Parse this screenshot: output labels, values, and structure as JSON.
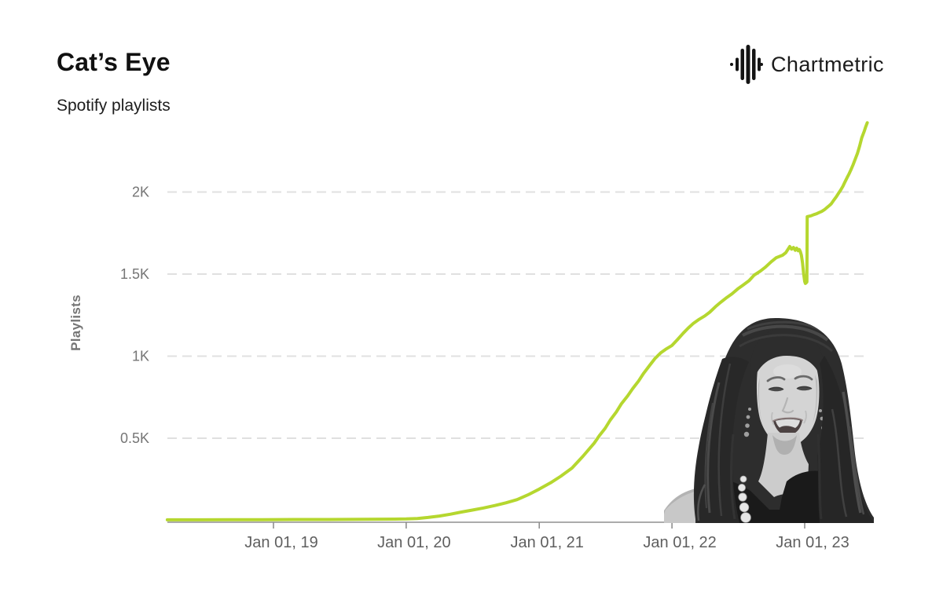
{
  "header": {
    "title": "Cat’s Eye",
    "subtitle": "Spotify playlists"
  },
  "brand": {
    "name": "Chartmetric"
  },
  "chart_data": {
    "type": "line",
    "title": "Cat's Eye",
    "subtitle": "Spotify playlists",
    "ylabel": "Playlists",
    "series_name": "Spotify playlists count",
    "line_color": "#b5d72f",
    "grid_color": "#e0e0e0",
    "axis_color": "#8f8f8f",
    "y_tick_color": "#757575",
    "x_tick_color": "#5f5f5f",
    "grid": "dashed horizontal",
    "legend": "none",
    "ylim": [
      0,
      2500
    ],
    "x_domain": [
      "2018-03-15",
      "2023-06-22"
    ],
    "x_ticks": [
      {
        "label": "Jan 01, 19",
        "date": "2019-01-01"
      },
      {
        "label": "Jan 01, 20",
        "date": "2020-01-01"
      },
      {
        "label": "Jan 01, 21",
        "date": "2021-01-01"
      },
      {
        "label": "Jan 01, 22",
        "date": "2022-01-01"
      },
      {
        "label": "Jan 01, 23",
        "date": "2023-01-01"
      }
    ],
    "y_ticks": [
      {
        "label": "0.5K",
        "value": 500
      },
      {
        "label": "1K",
        "value": 1000
      },
      {
        "label": "1.5K",
        "value": 1500
      },
      {
        "label": "2K",
        "value": 2000
      }
    ],
    "points": [
      {
        "d": "2018-03-15",
        "v": 3
      },
      {
        "d": "2018-06-01",
        "v": 3
      },
      {
        "d": "2018-09-01",
        "v": 4
      },
      {
        "d": "2018-12-01",
        "v": 4
      },
      {
        "d": "2019-03-01",
        "v": 5
      },
      {
        "d": "2019-06-01",
        "v": 5
      },
      {
        "d": "2019-09-01",
        "v": 6
      },
      {
        "d": "2019-12-01",
        "v": 7
      },
      {
        "d": "2020-01-01",
        "v": 8
      },
      {
        "d": "2020-02-01",
        "v": 11
      },
      {
        "d": "2020-03-01",
        "v": 17
      },
      {
        "d": "2020-04-01",
        "v": 26
      },
      {
        "d": "2020-05-01",
        "v": 37
      },
      {
        "d": "2020-06-01",
        "v": 50
      },
      {
        "d": "2020-07-01",
        "v": 62
      },
      {
        "d": "2020-08-01",
        "v": 75
      },
      {
        "d": "2020-09-01",
        "v": 90
      },
      {
        "d": "2020-10-01",
        "v": 106
      },
      {
        "d": "2020-11-01",
        "v": 126
      },
      {
        "d": "2020-12-01",
        "v": 155
      },
      {
        "d": "2021-01-01",
        "v": 190
      },
      {
        "d": "2021-02-01",
        "v": 228
      },
      {
        "d": "2021-03-01",
        "v": 268
      },
      {
        "d": "2021-04-01",
        "v": 318
      },
      {
        "d": "2021-05-01",
        "v": 390
      },
      {
        "d": "2021-06-01",
        "v": 470
      },
      {
        "d": "2021-06-15",
        "v": 515
      },
      {
        "d": "2021-07-01",
        "v": 560
      },
      {
        "d": "2021-07-15",
        "v": 610
      },
      {
        "d": "2021-08-01",
        "v": 660
      },
      {
        "d": "2021-08-15",
        "v": 710
      },
      {
        "d": "2021-09-01",
        "v": 758
      },
      {
        "d": "2021-09-15",
        "v": 802
      },
      {
        "d": "2021-10-01",
        "v": 848
      },
      {
        "d": "2021-10-15",
        "v": 895
      },
      {
        "d": "2021-11-01",
        "v": 945
      },
      {
        "d": "2021-11-15",
        "v": 985
      },
      {
        "d": "2021-12-01",
        "v": 1020
      },
      {
        "d": "2021-12-15",
        "v": 1042
      },
      {
        "d": "2022-01-01",
        "v": 1065
      },
      {
        "d": "2022-01-15",
        "v": 1098
      },
      {
        "d": "2022-02-01",
        "v": 1140
      },
      {
        "d": "2022-02-15",
        "v": 1172
      },
      {
        "d": "2022-03-01",
        "v": 1200
      },
      {
        "d": "2022-03-15",
        "v": 1222
      },
      {
        "d": "2022-04-01",
        "v": 1245
      },
      {
        "d": "2022-04-15",
        "v": 1268
      },
      {
        "d": "2022-05-01",
        "v": 1302
      },
      {
        "d": "2022-05-15",
        "v": 1328
      },
      {
        "d": "2022-06-01",
        "v": 1358
      },
      {
        "d": "2022-06-15",
        "v": 1380
      },
      {
        "d": "2022-07-01",
        "v": 1410
      },
      {
        "d": "2022-07-15",
        "v": 1432
      },
      {
        "d": "2022-08-01",
        "v": 1460
      },
      {
        "d": "2022-08-15",
        "v": 1494
      },
      {
        "d": "2022-09-01",
        "v": 1518
      },
      {
        "d": "2022-09-15",
        "v": 1542
      },
      {
        "d": "2022-10-01",
        "v": 1575
      },
      {
        "d": "2022-10-15",
        "v": 1600
      },
      {
        "d": "2022-11-01",
        "v": 1615
      },
      {
        "d": "2022-11-10",
        "v": 1630
      },
      {
        "d": "2022-11-21",
        "v": 1668
      },
      {
        "d": "2022-11-26",
        "v": 1652
      },
      {
        "d": "2022-12-01",
        "v": 1662
      },
      {
        "d": "2022-12-06",
        "v": 1645
      },
      {
        "d": "2022-12-10",
        "v": 1658
      },
      {
        "d": "2022-12-14",
        "v": 1642
      },
      {
        "d": "2022-12-17",
        "v": 1650
      },
      {
        "d": "2022-12-20",
        "v": 1638
      },
      {
        "d": "2022-12-23",
        "v": 1615
      },
      {
        "d": "2022-12-26",
        "v": 1570
      },
      {
        "d": "2022-12-29",
        "v": 1505
      },
      {
        "d": "2023-01-01",
        "v": 1455
      },
      {
        "d": "2023-01-03",
        "v": 1443
      },
      {
        "d": "2023-01-05",
        "v": 1447
      },
      {
        "d": "2023-01-07",
        "v": 1452
      },
      {
        "d": "2023-01-08",
        "v": 1850
      },
      {
        "d": "2023-01-12",
        "v": 1852
      },
      {
        "d": "2023-01-18",
        "v": 1855
      },
      {
        "d": "2023-01-26",
        "v": 1862
      },
      {
        "d": "2023-02-03",
        "v": 1868
      },
      {
        "d": "2023-02-10",
        "v": 1875
      },
      {
        "d": "2023-02-17",
        "v": 1882
      },
      {
        "d": "2023-02-24",
        "v": 1892
      },
      {
        "d": "2023-03-03",
        "v": 1905
      },
      {
        "d": "2023-03-10",
        "v": 1918
      },
      {
        "d": "2023-03-15",
        "v": 1928
      },
      {
        "d": "2023-03-22",
        "v": 1950
      },
      {
        "d": "2023-03-29",
        "v": 1972
      },
      {
        "d": "2023-04-04",
        "v": 1992
      },
      {
        "d": "2023-04-10",
        "v": 2012
      },
      {
        "d": "2023-04-16",
        "v": 2035
      },
      {
        "d": "2023-04-21",
        "v": 2058
      },
      {
        "d": "2023-04-27",
        "v": 2085
      },
      {
        "d": "2023-05-03",
        "v": 2110
      },
      {
        "d": "2023-05-08",
        "v": 2135
      },
      {
        "d": "2023-05-14",
        "v": 2165
      },
      {
        "d": "2023-05-20",
        "v": 2200
      },
      {
        "d": "2023-05-26",
        "v": 2235
      },
      {
        "d": "2023-06-01",
        "v": 2280
      },
      {
        "d": "2023-06-07",
        "v": 2330
      },
      {
        "d": "2023-06-14",
        "v": 2372
      },
      {
        "d": "2023-06-18",
        "v": 2398
      },
      {
        "d": "2023-06-22",
        "v": 2422
      }
    ]
  },
  "overlay_image": {
    "description": "grayscale cutout photo of a smiling woman with long dark wavy hair, drop earrings, pearl necklace and black top"
  }
}
